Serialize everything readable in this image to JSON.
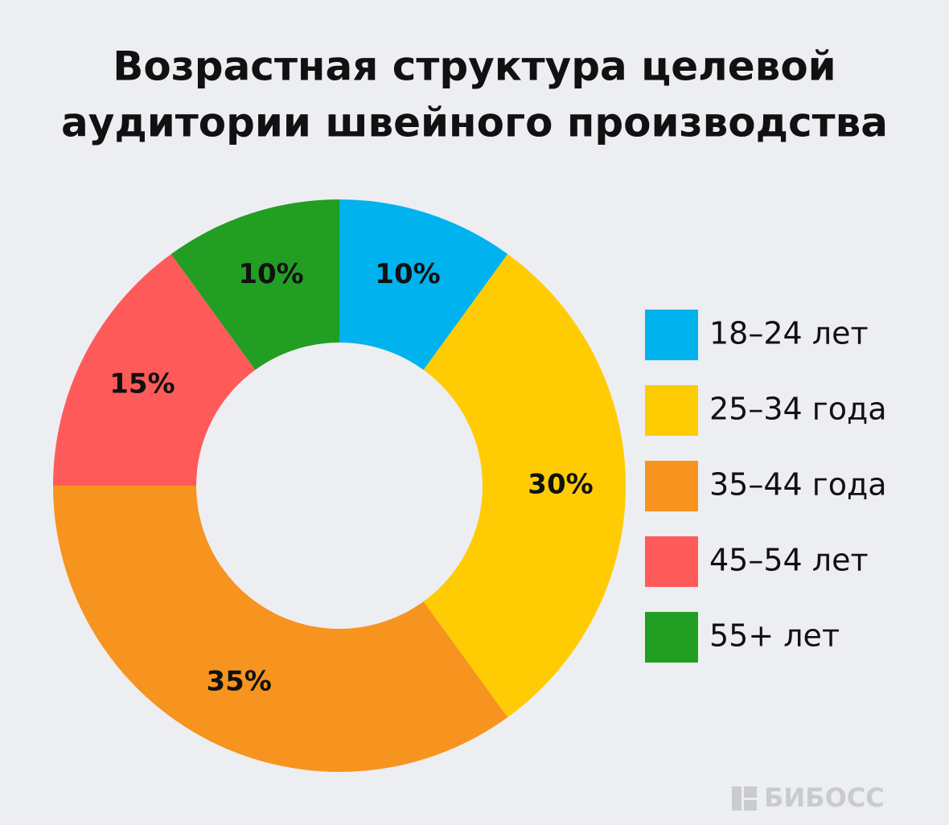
{
  "chart_data": {
    "type": "donut",
    "title": [
      "Возрастная структура целевой",
      "аудитории швейного производства"
    ],
    "categories": [
      "18–24 лет",
      "25–34 года",
      "35–44 года",
      "45–54 лет",
      "55+ лет"
    ],
    "values": [
      10,
      30,
      35,
      15,
      10
    ],
    "value_labels": [
      "10%",
      "30%",
      "35%",
      "15%",
      "10%"
    ],
    "colors": [
      "#00b2ee",
      "#ffcc03",
      "#f7941f",
      "#ff5a5a",
      "#229e22"
    ],
    "legend": "right",
    "watermark": "БИБОСС"
  }
}
